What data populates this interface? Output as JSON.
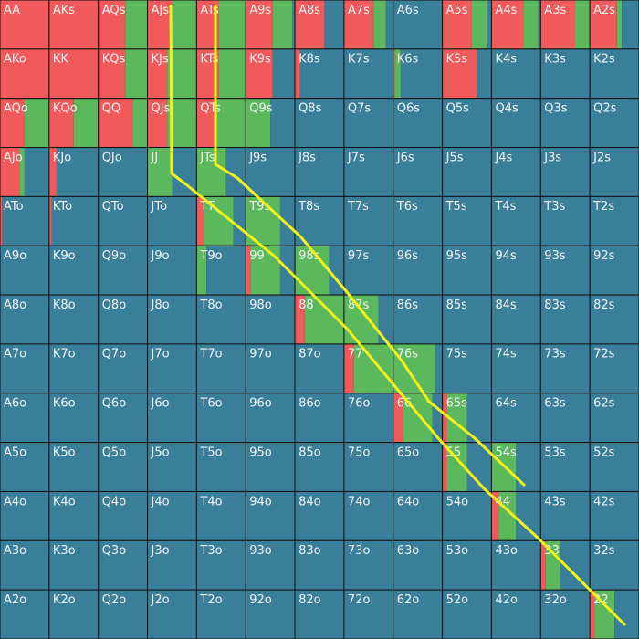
{
  "grid": {
    "colors": [
      "#f05a5a",
      "#5cb85c",
      "#3a7f9a"
    ],
    "labels": [
      [
        "AA",
        "AKs",
        "AQs",
        "AJs",
        "ATs",
        "A9s",
        "A8s",
        "A7s",
        "A6s",
        "A5s",
        "A4s",
        "A3s",
        "A2s"
      ],
      [
        "AKo",
        "KK",
        "KQs",
        "KJs",
        "KTs",
        "K9s",
        "K8s",
        "K7s",
        "K6s",
        "K5s",
        "K4s",
        "K3s",
        "K2s"
      ],
      [
        "AQo",
        "KQo",
        "QQ",
        "QJs",
        "QTs",
        "Q9s",
        "Q8s",
        "Q7s",
        "Q6s",
        "Q5s",
        "Q4s",
        "Q3s",
        "Q2s"
      ],
      [
        "AJo",
        "KJo",
        "QJo",
        "JJ",
        "JTs",
        "J9s",
        "J8s",
        "J7s",
        "J6s",
        "J5s",
        "J4s",
        "J3s",
        "J2s"
      ],
      [
        "ATo",
        "KTo",
        "QTo",
        "JTo",
        "TT",
        "T9s",
        "T8s",
        "T7s",
        "T6s",
        "T5s",
        "T4s",
        "T3s",
        "T2s"
      ],
      [
        "A9o",
        "K9o",
        "Q9o",
        "J9o",
        "T9o",
        "99",
        "98s",
        "97s",
        "96s",
        "95s",
        "94s",
        "93s",
        "92s"
      ],
      [
        "A8o",
        "K8o",
        "Q8o",
        "J8o",
        "T8o",
        "98o",
        "88",
        "87s",
        "86s",
        "85s",
        "84s",
        "83s",
        "82s"
      ],
      [
        "A7o",
        "K7o",
        "Q7o",
        "J7o",
        "T7o",
        "97o",
        "87o",
        "77",
        "76s",
        "75s",
        "74s",
        "73s",
        "72s"
      ],
      [
        "A6o",
        "K6o",
        "Q6o",
        "J6o",
        "T6o",
        "96o",
        "86o",
        "76o",
        "66",
        "65s",
        "64s",
        "63s",
        "62s"
      ],
      [
        "A5o",
        "K5o",
        "Q5o",
        "J5o",
        "T5o",
        "95o",
        "85o",
        "75o",
        "65o",
        "55",
        "54s",
        "53s",
        "52s"
      ],
      [
        "A4o",
        "K4o",
        "Q4o",
        "J4o",
        "T4o",
        "94o",
        "84o",
        "74o",
        "64o",
        "54o",
        "44",
        "43s",
        "42s"
      ],
      [
        "A3o",
        "K3o",
        "Q3o",
        "J3o",
        "T3o",
        "93o",
        "83o",
        "73o",
        "63o",
        "53o",
        "43o",
        "33",
        "32s"
      ],
      [
        "A2o",
        "K2o",
        "Q2o",
        "J2o",
        "T2o",
        "92o",
        "82o",
        "72o",
        "62o",
        "52o",
        "42o",
        "32o",
        "22"
      ]
    ],
    "mix": [
      [
        [
          100,
          0,
          0
        ],
        [
          100,
          0,
          0
        ],
        [
          55,
          45,
          0
        ],
        [
          50,
          50,
          0
        ],
        [
          45,
          55,
          0
        ],
        [
          55,
          40,
          5
        ],
        [
          60,
          0,
          40
        ],
        [
          60,
          25,
          15
        ],
        [
          0,
          0,
          100
        ],
        [
          60,
          30,
          10
        ],
        [
          65,
          30,
          5
        ],
        [
          70,
          30,
          0
        ],
        [
          55,
          10,
          35
        ]
      ],
      [
        [
          100,
          0,
          0
        ],
        [
          100,
          0,
          0
        ],
        [
          55,
          45,
          0
        ],
        [
          40,
          60,
          0
        ],
        [
          45,
          55,
          0
        ],
        [
          55,
          0,
          45
        ],
        [
          10,
          0,
          90
        ],
        [
          0,
          0,
          100
        ],
        [
          3,
          12,
          85
        ],
        [
          70,
          0,
          30
        ],
        [
          0,
          0,
          100
        ],
        [
          0,
          0,
          100
        ],
        [
          0,
          0,
          100
        ]
      ],
      [
        [
          50,
          50,
          0
        ],
        [
          50,
          50,
          0
        ],
        [
          70,
          30,
          0
        ],
        [
          40,
          60,
          0
        ],
        [
          40,
          60,
          0
        ],
        [
          0,
          50,
          50
        ],
        [
          0,
          0,
          100
        ],
        [
          0,
          0,
          100
        ],
        [
          0,
          0,
          100
        ],
        [
          0,
          0,
          100
        ],
        [
          0,
          0,
          100
        ],
        [
          0,
          0,
          100
        ],
        [
          0,
          0,
          100
        ]
      ],
      [
        [
          40,
          10,
          50
        ],
        [
          15,
          0,
          85
        ],
        [
          0,
          0,
          100
        ],
        [
          0,
          50,
          50
        ],
        [
          0,
          60,
          40
        ],
        [
          0,
          0,
          100
        ],
        [
          0,
          0,
          100
        ],
        [
          0,
          0,
          100
        ],
        [
          0,
          0,
          100
        ],
        [
          0,
          0,
          100
        ],
        [
          0,
          0,
          100
        ],
        [
          0,
          0,
          100
        ],
        [
          0,
          0,
          100
        ]
      ],
      [
        [
          5,
          0,
          95
        ],
        [
          5,
          0,
          95
        ],
        [
          0,
          0,
          100
        ],
        [
          0,
          0,
          100
        ],
        [
          15,
          60,
          25
        ],
        [
          0,
          70,
          30
        ],
        [
          0,
          0,
          100
        ],
        [
          0,
          0,
          100
        ],
        [
          0,
          0,
          100
        ],
        [
          0,
          0,
          100
        ],
        [
          0,
          0,
          100
        ],
        [
          0,
          0,
          100
        ],
        [
          0,
          0,
          100
        ]
      ],
      [
        [
          0,
          0,
          100
        ],
        [
          0,
          0,
          100
        ],
        [
          0,
          0,
          100
        ],
        [
          0,
          0,
          100
        ],
        [
          0,
          20,
          80
        ],
        [
          10,
          60,
          30
        ],
        [
          0,
          70,
          30
        ],
        [
          0,
          0,
          100
        ],
        [
          0,
          0,
          100
        ],
        [
          0,
          0,
          100
        ],
        [
          0,
          0,
          100
        ],
        [
          0,
          0,
          100
        ],
        [
          0,
          0,
          100
        ]
      ],
      [
        [
          0,
          0,
          100
        ],
        [
          0,
          0,
          100
        ],
        [
          0,
          0,
          100
        ],
        [
          0,
          0,
          100
        ],
        [
          0,
          0,
          100
        ],
        [
          0,
          0,
          100
        ],
        [
          20,
          80,
          0
        ],
        [
          0,
          70,
          30
        ],
        [
          0,
          0,
          100
        ],
        [
          0,
          0,
          100
        ],
        [
          0,
          0,
          100
        ],
        [
          0,
          0,
          100
        ],
        [
          0,
          0,
          100
        ]
      ],
      [
        [
          0,
          0,
          100
        ],
        [
          0,
          0,
          100
        ],
        [
          0,
          0,
          100
        ],
        [
          0,
          0,
          100
        ],
        [
          0,
          0,
          100
        ],
        [
          0,
          0,
          100
        ],
        [
          0,
          0,
          100
        ],
        [
          20,
          80,
          0
        ],
        [
          0,
          85,
          15
        ],
        [
          0,
          0,
          100
        ],
        [
          0,
          0,
          100
        ],
        [
          0,
          0,
          100
        ],
        [
          0,
          0,
          100
        ]
      ],
      [
        [
          0,
          0,
          100
        ],
        [
          0,
          0,
          100
        ],
        [
          0,
          0,
          100
        ],
        [
          0,
          0,
          100
        ],
        [
          0,
          0,
          100
        ],
        [
          0,
          0,
          100
        ],
        [
          0,
          0,
          100
        ],
        [
          0,
          0,
          100
        ],
        [
          20,
          60,
          20
        ],
        [
          10,
          40,
          50
        ],
        [
          0,
          0,
          100
        ],
        [
          0,
          0,
          100
        ],
        [
          0,
          0,
          100
        ]
      ],
      [
        [
          0,
          0,
          100
        ],
        [
          0,
          0,
          100
        ],
        [
          0,
          0,
          100
        ],
        [
          0,
          0,
          100
        ],
        [
          0,
          0,
          100
        ],
        [
          0,
          0,
          100
        ],
        [
          0,
          0,
          100
        ],
        [
          0,
          0,
          100
        ],
        [
          0,
          0,
          100
        ],
        [
          10,
          40,
          50
        ],
        [
          0,
          50,
          50
        ],
        [
          0,
          0,
          100
        ],
        [
          0,
          0,
          100
        ]
      ],
      [
        [
          0,
          0,
          100
        ],
        [
          0,
          0,
          100
        ],
        [
          0,
          0,
          100
        ],
        [
          0,
          0,
          100
        ],
        [
          0,
          0,
          100
        ],
        [
          0,
          0,
          100
        ],
        [
          0,
          0,
          100
        ],
        [
          0,
          0,
          100
        ],
        [
          0,
          0,
          100
        ],
        [
          0,
          0,
          100
        ],
        [
          15,
          35,
          50
        ],
        [
          0,
          0,
          100
        ],
        [
          0,
          0,
          100
        ]
      ],
      [
        [
          0,
          0,
          100
        ],
        [
          0,
          0,
          100
        ],
        [
          0,
          0,
          100
        ],
        [
          0,
          0,
          100
        ],
        [
          0,
          0,
          100
        ],
        [
          0,
          0,
          100
        ],
        [
          0,
          0,
          100
        ],
        [
          0,
          0,
          100
        ],
        [
          0,
          0,
          100
        ],
        [
          0,
          0,
          100
        ],
        [
          0,
          0,
          100
        ],
        [
          10,
          30,
          60
        ],
        [
          0,
          0,
          100
        ]
      ],
      [
        [
          0,
          0,
          100
        ],
        [
          0,
          0,
          100
        ],
        [
          0,
          0,
          100
        ],
        [
          0,
          0,
          100
        ],
        [
          0,
          0,
          100
        ],
        [
          0,
          0,
          100
        ],
        [
          0,
          0,
          100
        ],
        [
          0,
          0,
          100
        ],
        [
          0,
          0,
          100
        ],
        [
          0,
          0,
          100
        ],
        [
          0,
          0,
          100
        ],
        [
          0,
          0,
          100
        ],
        [
          10,
          40,
          50
        ]
      ]
    ]
  }
}
